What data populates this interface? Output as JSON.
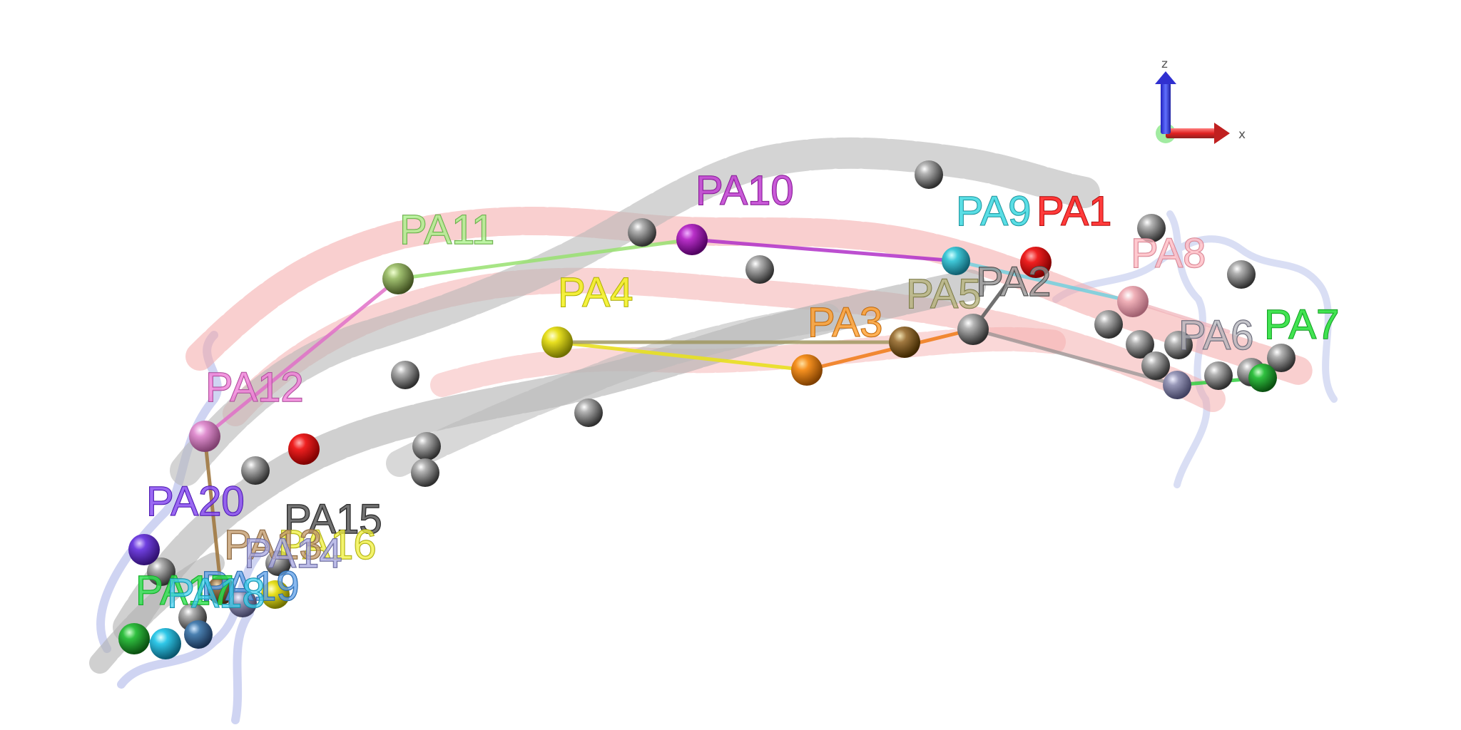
{
  "axes": {
    "x_label": "x",
    "z_label": "z"
  },
  "sites": [
    {
      "id": "PA1",
      "label": "PA1",
      "color": "#ff2020"
    },
    {
      "id": "PA2",
      "label": "PA2",
      "color": "#666666"
    },
    {
      "id": "PA3",
      "label": "PA3",
      "color": "#ff9a20"
    },
    {
      "id": "PA4",
      "label": "PA4",
      "color": "#f2f020"
    },
    {
      "id": "PA5",
      "label": "PA5",
      "color": "#b0ae70"
    },
    {
      "id": "PA6",
      "label": "PA6",
      "color": "#a8a8b0"
    },
    {
      "id": "PA7",
      "label": "PA7",
      "color": "#30e040"
    },
    {
      "id": "PA8",
      "label": "PA8",
      "color": "#ffb0b8"
    },
    {
      "id": "PA9",
      "label": "PA9",
      "color": "#40d8e0"
    },
    {
      "id": "PA10",
      "label": "PA10",
      "color": "#c030d0"
    },
    {
      "id": "PA11",
      "label": "PA11",
      "color": "#a0f080"
    },
    {
      "id": "PA12",
      "label": "PA12",
      "color": "#f070d0"
    },
    {
      "id": "PA13",
      "label": "PA13",
      "color": "#b89060"
    },
    {
      "id": "PA14",
      "label": "PA14",
      "color": "#a8a8e0"
    },
    {
      "id": "PA15",
      "label": "PA15",
      "color": "#505050"
    },
    {
      "id": "PA16",
      "label": "PA16",
      "color": "#f0f040"
    },
    {
      "id": "PA17",
      "label": "PA17",
      "color": "#30e050"
    },
    {
      "id": "PA18",
      "label": "PA18",
      "color": "#40d0f0"
    },
    {
      "id": "PA19",
      "label": "PA19",
      "color": "#5090e0"
    },
    {
      "id": "PA20",
      "label": "PA20",
      "color": "#8040f0"
    }
  ]
}
